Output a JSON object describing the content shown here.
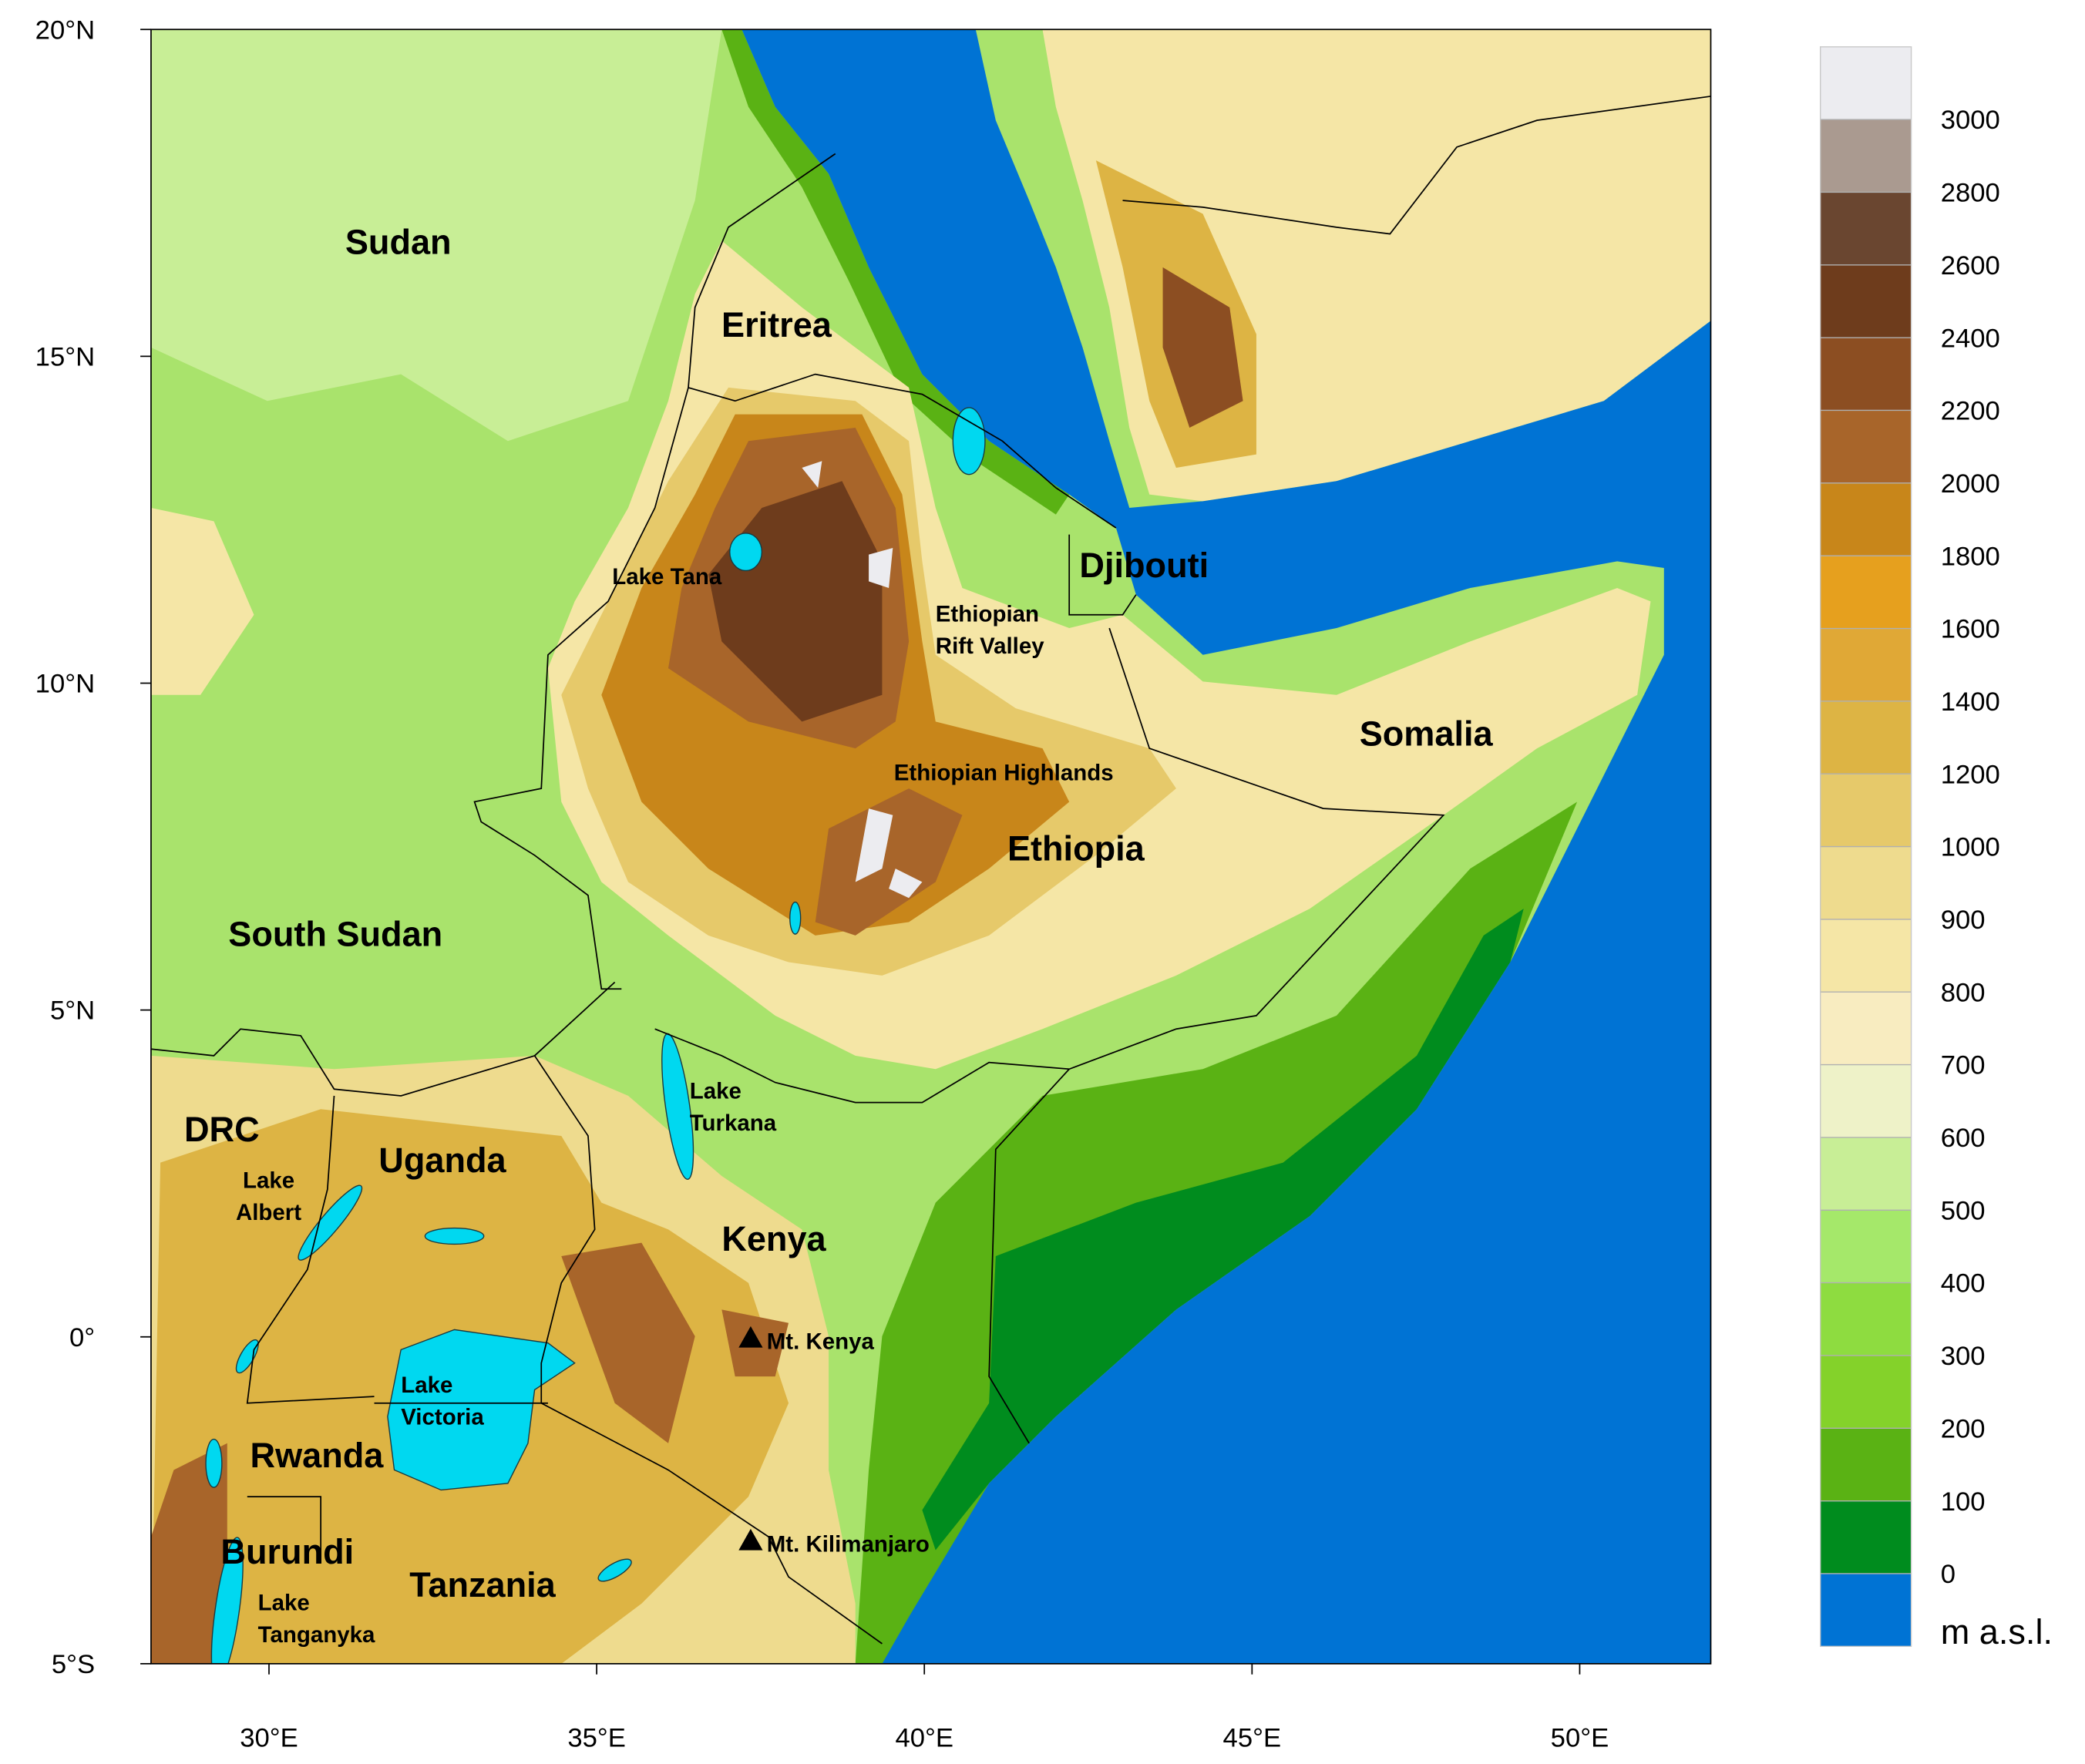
{
  "map": {
    "xlim": [
      28.2,
      52
    ],
    "ylim": [
      -5,
      20
    ],
    "xticks": [
      {
        "value": 30,
        "label": "30°E"
      },
      {
        "value": 35,
        "label": "35°E"
      },
      {
        "value": 40,
        "label": "40°E"
      },
      {
        "value": 45,
        "label": "45°E"
      },
      {
        "value": 50,
        "label": "50°E"
      }
    ],
    "yticks": [
      {
        "value": -5,
        "label": "5°S"
      },
      {
        "value": 0,
        "label": "0°"
      },
      {
        "value": 5,
        "label": "5°N"
      },
      {
        "value": 10,
        "label": "10°N"
      },
      {
        "value": 15,
        "label": "15°N"
      },
      {
        "value": 20,
        "label": "20°N"
      }
    ],
    "countries": [
      "Sudan",
      "Eritrea",
      "Djibouti",
      "Somalia",
      "Ethiopia",
      "South Sudan",
      "DRC",
      "Uganda",
      "Kenya",
      "Rwanda",
      "Burundi",
      "Tanzania"
    ],
    "water_bodies": [
      [
        "Lake Tana"
      ],
      [
        "Lake",
        "Turkana"
      ],
      [
        "Lake",
        "Albert"
      ],
      [
        "Lake",
        "Victoria"
      ],
      [
        "Lake",
        "Tanganyka"
      ]
    ],
    "regions": [
      [
        "Ethiopian",
        "Rift Valley"
      ],
      [
        "Ethiopian Highlands"
      ]
    ],
    "peaks": [
      {
        "name": "Mt. Kenya",
        "lon": 37.35,
        "lat": 0
      },
      {
        "name": "Mt. Kilimanjaro",
        "lon": 37.35,
        "lat": -3.1
      }
    ],
    "colorbar": {
      "levels": [
        0,
        100,
        200,
        300,
        400,
        500,
        600,
        700,
        800,
        900,
        1000,
        1200,
        1400,
        1600,
        1800,
        2000,
        2200,
        2400,
        2600,
        2800,
        3000
      ],
      "colors": [
        "#0073d4",
        "#008c1e",
        "#5ab214",
        "#84d22a",
        "#8edc40",
        "#a5e86a",
        "#c8ee96",
        "#eef2c8",
        "#f8ecc0",
        "#f5e6a6",
        "#eedb8e",
        "#e6c96a",
        "#ddb444",
        "#e0a836",
        "#e6a01e",
        "#c8861a",
        "#a8652a",
        "#8c4e22",
        "#6e3c1c",
        "#6a4630",
        "#aa9a90",
        "#ececf0"
      ],
      "unit": "m a.s.l."
    }
  }
}
